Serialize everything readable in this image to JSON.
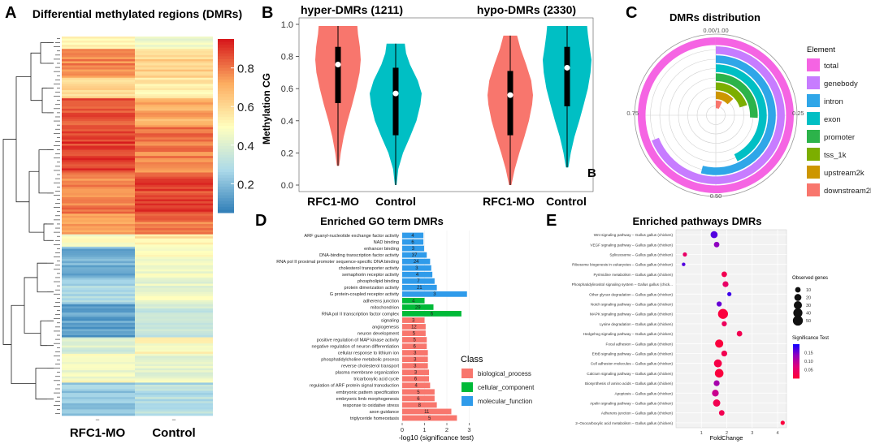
{
  "panels": {
    "A": "A",
    "B": "B",
    "B2": "B",
    "C": "C",
    "D": "D",
    "E": "E"
  },
  "colors": {
    "rfc1": "#f8766d",
    "control": "#00bfc4",
    "bp": "#f8766d",
    "cc": "#00ba38",
    "mf": "#2f9bea"
  },
  "chart_data": [
    {
      "id": "A",
      "type": "heatmap",
      "title": "Differential methylated regions (DMRs)",
      "columns": [
        "RFC1-MO",
        "Control"
      ],
      "colorbar_ticks": [
        0.2,
        0.4,
        0.6,
        0.8
      ],
      "colorbar_range": [
        0.05,
        0.95
      ],
      "column_marks": [
        "−",
        "−"
      ],
      "blocks": [
        {
          "rows": 6,
          "rfc1": 0.55,
          "control": 0.45
        },
        {
          "rows": 14,
          "rfc1": 0.78,
          "control": 0.62
        },
        {
          "rows": 10,
          "rfc1": 0.62,
          "control": 0.55
        },
        {
          "rows": 14,
          "rfc1": 0.85,
          "control": 0.72
        },
        {
          "rows": 22,
          "rfc1": 0.9,
          "control": 0.8
        },
        {
          "rows": 20,
          "rfc1": 0.8,
          "control": 0.88
        },
        {
          "rows": 10,
          "rfc1": 0.72,
          "control": 0.8
        },
        {
          "rows": 6,
          "rfc1": 0.5,
          "control": 0.55
        },
        {
          "rows": 16,
          "rfc1": 0.18,
          "control": 0.48
        },
        {
          "rows": 12,
          "rfc1": 0.28,
          "control": 0.45
        },
        {
          "rows": 16,
          "rfc1": 0.14,
          "control": 0.35
        },
        {
          "rows": 8,
          "rfc1": 0.4,
          "control": 0.5
        },
        {
          "rows": 14,
          "rfc1": 0.48,
          "control": 0.45
        },
        {
          "rows": 16,
          "rfc1": 0.25,
          "control": 0.3
        }
      ]
    },
    {
      "id": "B",
      "type": "violin",
      "ylabel": "Methylation CG",
      "ylim": [
        0.0,
        1.0
      ],
      "yticks": [
        "0.0",
        "0.2",
        "0.4",
        "0.6",
        "0.8",
        "1.0"
      ],
      "groups": [
        {
          "title": "hyper-DMRs (1211)",
          "violins": [
            {
              "name": "RFC1-MO",
              "color": "#f8766d",
              "min": 0.12,
              "q1": 0.51,
              "median": 0.75,
              "q3": 0.86,
              "max": 0.99,
              "profile": [
                [
                  0.12,
                  0.05
                ],
                [
                  0.2,
                  0.12
                ],
                [
                  0.3,
                  0.25
                ],
                [
                  0.4,
                  0.42
                ],
                [
                  0.5,
                  0.62
                ],
                [
                  0.6,
                  0.8
                ],
                [
                  0.7,
                  0.95
                ],
                [
                  0.78,
                  1.0
                ],
                [
                  0.86,
                  0.96
                ],
                [
                  0.94,
                  0.88
                ],
                [
                  0.99,
                  0.85
                ]
              ]
            },
            {
              "name": "Control",
              "color": "#00bfc4",
              "min": 0.0,
              "q1": 0.31,
              "median": 0.57,
              "q3": 0.73,
              "max": 0.88,
              "profile": [
                [
                  0.0,
                  0.03
                ],
                [
                  0.1,
                  0.1
                ],
                [
                  0.2,
                  0.28
                ],
                [
                  0.3,
                  0.55
                ],
                [
                  0.4,
                  0.8
                ],
                [
                  0.5,
                  0.95
                ],
                [
                  0.57,
                  1.0
                ],
                [
                  0.65,
                  0.85
                ],
                [
                  0.75,
                  0.55
                ],
                [
                  0.82,
                  0.4
                ],
                [
                  0.88,
                  0.35
                ]
              ]
            }
          ]
        },
        {
          "title": "hypo-DMRs (2330)",
          "violins": [
            {
              "name": "RFC1-MO",
              "color": "#f8766d",
              "min": 0.0,
              "q1": 0.31,
              "median": 0.56,
              "q3": 0.71,
              "max": 0.93,
              "profile": [
                [
                  0.0,
                  0.05
                ],
                [
                  0.1,
                  0.2
                ],
                [
                  0.2,
                  0.4
                ],
                [
                  0.3,
                  0.62
                ],
                [
                  0.4,
                  0.82
                ],
                [
                  0.5,
                  0.96
                ],
                [
                  0.56,
                  1.0
                ],
                [
                  0.65,
                  0.92
                ],
                [
                  0.75,
                  0.7
                ],
                [
                  0.85,
                  0.45
                ],
                [
                  0.93,
                  0.3
                ]
              ]
            },
            {
              "name": "Control",
              "color": "#00bfc4",
              "min": 0.11,
              "q1": 0.49,
              "median": 0.73,
              "q3": 0.86,
              "max": 0.99,
              "profile": [
                [
                  0.11,
                  0.05
                ],
                [
                  0.2,
                  0.15
                ],
                [
                  0.3,
                  0.3
                ],
                [
                  0.4,
                  0.5
                ],
                [
                  0.5,
                  0.68
                ],
                [
                  0.6,
                  0.85
                ],
                [
                  0.7,
                  0.96
                ],
                [
                  0.78,
                  1.0
                ],
                [
                  0.86,
                  0.92
                ],
                [
                  0.94,
                  0.85
                ],
                [
                  0.99,
                  0.82
                ]
              ]
            }
          ]
        }
      ]
    },
    {
      "id": "C",
      "type": "radial-bar",
      "title": "DMRs distribution",
      "legend_title": "Element",
      "angle_labels": [
        "0.00/1.00",
        "0.25",
        "0.50",
        "0.75"
      ],
      "series": [
        {
          "name": "total",
          "value": 1.0,
          "color": "#f564e3"
        },
        {
          "name": "genebody",
          "value": 0.69,
          "color": "#c77cff"
        },
        {
          "name": "intron",
          "value": 0.54,
          "color": "#2fa6e8"
        },
        {
          "name": "exon",
          "value": 0.43,
          "color": "#00bfc4"
        },
        {
          "name": "promoter",
          "value": 0.26,
          "color": "#2cb34a"
        },
        {
          "name": "tss_1k",
          "value": 0.2,
          "color": "#7cae00"
        },
        {
          "name": "upstream2k",
          "value": 0.13,
          "color": "#cd9600"
        },
        {
          "name": "downstream2k",
          "value": 0.07,
          "color": "#f8766d"
        }
      ]
    },
    {
      "id": "D",
      "type": "bar",
      "title": "Enriched GO term DMRs",
      "xlabel": "-log10 (significance test)",
      "xlim": [
        0,
        3.2
      ],
      "xticks": [
        0,
        1,
        2,
        3
      ],
      "legend_title": "Class",
      "classes": [
        {
          "key": "bp",
          "label": "biological_process",
          "color": "#f8766d"
        },
        {
          "key": "cc",
          "label": "cellular_component",
          "color": "#00ba38"
        },
        {
          "key": "mf",
          "label": "molecular_function",
          "color": "#2f9bea"
        }
      ],
      "terms": [
        {
          "term": "ARF guanyl-nucleotide exchange factor activity",
          "value": 0.95,
          "count": "4",
          "class": "mf"
        },
        {
          "term": "NAD binding",
          "value": 0.95,
          "count": "6",
          "class": "mf"
        },
        {
          "term": "enhancer binding",
          "value": 0.98,
          "count": "3",
          "class": "mf"
        },
        {
          "term": "DNA-binding transcription factor activity",
          "value": 1.1,
          "count": "37",
          "class": "mf"
        },
        {
          "term": "RNA pol II proximal promoter sequence-specific DNA binding",
          "value": 1.25,
          "count": "24",
          "class": "mf"
        },
        {
          "term": "cholesterol transporter activity",
          "value": 1.3,
          "count": "3",
          "class": "mf"
        },
        {
          "term": "semaphorin receptor activity",
          "value": 1.35,
          "count": "4",
          "class": "mf"
        },
        {
          "term": "phospholipid binding",
          "value": 1.45,
          "count": "7",
          "class": "mf"
        },
        {
          "term": "protein dimerization activity",
          "value": 1.55,
          "count": "21",
          "class": "mf"
        },
        {
          "term": "G protein-coupled receptor activity",
          "value": 2.9,
          "count": "3",
          "class": "mf"
        },
        {
          "term": "adherens junction",
          "value": 1.0,
          "count": "4",
          "class": "cc"
        },
        {
          "term": "mitochondrion",
          "value": 1.4,
          "count": "29",
          "class": "cc"
        },
        {
          "term": "RNA pol II transcription factor complex",
          "value": 2.65,
          "count": "6",
          "class": "cc"
        },
        {
          "term": "signaling",
          "value": 1.0,
          "count": "3",
          "class": "bp"
        },
        {
          "term": "angiogenesis",
          "value": 1.05,
          "count": "12",
          "class": "bp"
        },
        {
          "term": "neuron development",
          "value": 1.05,
          "count": "5",
          "class": "bp"
        },
        {
          "term": "positive regulation of MAP kinase activity",
          "value": 1.1,
          "count": "5",
          "class": "bp"
        },
        {
          "term": "negative regulation of neuron differentiation",
          "value": 1.1,
          "count": "6",
          "class": "bp"
        },
        {
          "term": "cellular response to lithium ion",
          "value": 1.15,
          "count": "3",
          "class": "bp"
        },
        {
          "term": "phosphatidylcholine metabolic process",
          "value": 1.15,
          "count": "3",
          "class": "bp"
        },
        {
          "term": "reverse cholesterol transport",
          "value": 1.15,
          "count": "3",
          "class": "bp"
        },
        {
          "term": "plasma membrane organization",
          "value": 1.2,
          "count": "3",
          "class": "bp"
        },
        {
          "term": "tricarboxylic acid cycle",
          "value": 1.2,
          "count": "6",
          "class": "bp"
        },
        {
          "term": "regulation of ARF protein signal transduction",
          "value": 1.25,
          "count": "4",
          "class": "bp"
        },
        {
          "term": "embryonic pattern specification",
          "value": 1.45,
          "count": "5",
          "class": "bp"
        },
        {
          "term": "embryonic limb morphogenesis",
          "value": 1.45,
          "count": "6",
          "class": "bp"
        },
        {
          "term": "response to oxidative stress",
          "value": 1.55,
          "count": "8",
          "class": "bp"
        },
        {
          "term": "axon guidance",
          "value": 2.2,
          "count": "11",
          "class": "bp"
        },
        {
          "term": "triglyceride homeostasis",
          "value": 2.45,
          "count": "5",
          "class": "bp"
        }
      ]
    },
    {
      "id": "E",
      "type": "scatter",
      "title": "Enriched pathways DMRs",
      "xlabel": "FoldChange",
      "xlim": [
        0,
        4.35
      ],
      "xticks": [
        1,
        2,
        3,
        4
      ],
      "size_legend": {
        "title": "Observed genes",
        "values": [
          10,
          20,
          30,
          40,
          50
        ]
      },
      "color_legend": {
        "title": "Significance Test",
        "ticks": [
          "0.15",
          "0.10",
          "0.05"
        ],
        "range": [
          0.0,
          0.2
        ]
      },
      "pathways": [
        {
          "name": "Wnt signaling pathway – Gallus gallus (chicken)",
          "fold": 1.5,
          "genes": 20,
          "p": 0.17
        },
        {
          "name": "VEGF signaling pathway – Gallus gallus (chicken)",
          "fold": 1.6,
          "genes": 10,
          "p": 0.14
        },
        {
          "name": "Spliceosome – Gallus gallus (chicken)",
          "fold": 0.35,
          "genes": 4,
          "p": 0.05
        },
        {
          "name": "Ribosome biogenesis in eukaryotes – Gallus gallus (chicken)",
          "fold": 0.3,
          "genes": 2,
          "p": 0.17
        },
        {
          "name": "Pyrimidine metabolism – Gallus gallus (chicken)",
          "fold": 1.9,
          "genes": 10,
          "p": 0.03
        },
        {
          "name": "Phosphatidylinositol signaling system – Gallus gallus (chick...",
          "fold": 1.95,
          "genes": 12,
          "p": 0.05
        },
        {
          "name": "Other glycan degradation – Gallus gallus (chicken)",
          "fold": 2.1,
          "genes": 4,
          "p": 0.18
        },
        {
          "name": "Notch signaling pathway – Gallus gallus (chicken)",
          "fold": 1.7,
          "genes": 8,
          "p": 0.16
        },
        {
          "name": "MAPK signaling pathway – Gallus gallus (chicken)",
          "fold": 1.85,
          "genes": 50,
          "p": 0.01
        },
        {
          "name": "Lysine degradation – Gallus gallus (chicken)",
          "fold": 1.9,
          "genes": 8,
          "p": 0.04
        },
        {
          "name": "Hedgehog signaling pathway – Gallus gallus (chicken)",
          "fold": 2.5,
          "genes": 10,
          "p": 0.03
        },
        {
          "name": "Focal adhesion – Gallus gallus (chicken)",
          "fold": 1.7,
          "genes": 30,
          "p": 0.01
        },
        {
          "name": "ErbB signaling pathway – Gallus gallus (chicken)",
          "fold": 1.9,
          "genes": 12,
          "p": 0.03
        },
        {
          "name": "Cell adhesion molecules – Gallus gallus (chicken)",
          "fold": 1.65,
          "genes": 28,
          "p": 0.02
        },
        {
          "name": "Calcium signaling pathway – Gallus gallus (chicken)",
          "fold": 1.7,
          "genes": 35,
          "p": 0.01
        },
        {
          "name": "Biosynthesis of amino acids – Gallus gallus (chicken)",
          "fold": 1.6,
          "genes": 12,
          "p": 0.12
        },
        {
          "name": "Apoptosis – Gallus gallus (chicken)",
          "fold": 1.55,
          "genes": 18,
          "p": 0.09
        },
        {
          "name": "Apelin signaling pathway – Gallus gallus (chicken)",
          "fold": 1.6,
          "genes": 22,
          "p": 0.03
        },
        {
          "name": "Adherens junction – Gallus gallus (chicken)",
          "fold": 1.8,
          "genes": 10,
          "p": 0.03
        },
        {
          "name": "2–Oxocarboxylic acid metabolism – Gallus gallus (chicken)",
          "fold": 4.2,
          "genes": 4,
          "p": 0.01
        }
      ]
    }
  ]
}
